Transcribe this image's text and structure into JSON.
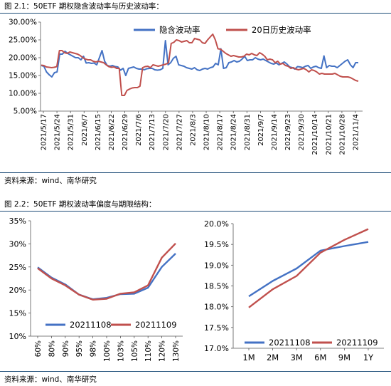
{
  "figure1": {
    "caption": "图 2.1：50ETF 期权隐含波动率与历史波动率：",
    "source": "资料来源：wind、南华研究"
  },
  "figure2": {
    "caption": "图 2.2：50ETF 期权波动率偏度与期限结构：",
    "source": "资料来源：wind、南华研究"
  },
  "colors": {
    "blue": "#4472c4",
    "red": "#c0504d"
  },
  "chart_data": [
    {
      "type": "line",
      "title": "",
      "xlabel": "",
      "ylabel": "",
      "ylim": [
        5,
        30
      ],
      "y_ticks": [
        "5.00%",
        "10.00%",
        "15.00%",
        "20.00%",
        "25.00%",
        "30.00%"
      ],
      "x_tick_labels": [
        "2021/5/17",
        "2021/5/24",
        "2021/5/31",
        "2021/6/7",
        "2021/6/15",
        "2021/6/22",
        "2021/6/29",
        "2021/7/6",
        "2021/7/13",
        "2021/7/20",
        "2021/7/27",
        "2021/8/3",
        "2021/8/10",
        "2021/8/17",
        "2021/8/24",
        "2021/8/31",
        "2021/9/7",
        "2021/9/14",
        "2021/9/23",
        "2021/9/30",
        "2021/10/14",
        "2021/10/21",
        "2021/10/28",
        "2021/11/4"
      ],
      "legend_position": "top",
      "grid": false,
      "series": [
        {
          "name": "隐含波动率",
          "color": "#4472c4",
          "values": [
            17.8,
            17.6,
            16.0,
            15.2,
            14.6,
            15.8,
            16.0,
            21.0,
            21.0,
            21.8,
            21.2,
            20.8,
            20.4,
            20.0,
            20.0,
            19.4,
            20.4,
            18.5,
            18.6,
            18.4,
            18.5,
            18.0,
            20.0,
            22.0,
            19.0,
            17.8,
            17.6,
            17.8,
            17.5,
            17.4,
            16.5,
            17.0,
            15.0,
            17.0,
            17.2,
            17.4,
            17.0,
            16.8,
            16.8,
            16.6,
            16.9,
            17.0,
            17.0,
            16.6,
            16.5,
            16.6,
            17.0,
            24.8,
            18.0,
            18.6,
            19.8,
            20.4,
            18.0,
            17.8,
            17.6,
            17.2,
            17.0,
            16.8,
            17.2,
            16.6,
            16.4,
            16.8,
            17.0,
            16.8,
            17.2,
            17.4,
            18.4,
            18.0,
            22.5,
            17.0,
            17.2,
            18.6,
            18.8,
            19.2,
            18.8,
            19.0,
            19.6,
            20.4,
            19.2,
            19.4,
            19.4,
            20.0,
            19.6,
            19.4,
            19.6,
            19.2,
            18.8,
            18.4,
            18.2,
            18.5,
            18.0,
            18.4,
            18.8,
            18.2,
            17.4,
            17.2,
            16.8,
            17.5,
            17.4,
            17.2,
            17.6,
            17.8,
            17.0,
            17.4,
            17.6,
            17.2,
            17.0,
            20.5,
            17.2,
            17.8,
            17.6,
            17.6,
            17.2,
            17.8,
            18.4,
            19.0,
            19.4,
            18.0,
            17.2,
            18.6,
            18.6
          ]
        },
        {
          "name": "20日历史波动率",
          "color": "#c0504d",
          "values": [
            17.9,
            17.8,
            17.4,
            17.3,
            17.2,
            17.3,
            17.5,
            22.0,
            22.0,
            21.4,
            21.2,
            21.6,
            21.4,
            21.2,
            21.0,
            20.6,
            20.0,
            19.6,
            19.4,
            19.4,
            19.0,
            18.8,
            19.0,
            18.8,
            18.6,
            18.0,
            17.5,
            17.3,
            17.4,
            17.0,
            17.0,
            9.4,
            9.4,
            10.8,
            11.2,
            11.5,
            11.6,
            11.6,
            12.0,
            17.2,
            17.5,
            17.6,
            17.2,
            18.0,
            17.8,
            17.6,
            17.8,
            18.0,
            18.2,
            18.6,
            24.0,
            24.3,
            25.0,
            24.8,
            24.4,
            24.6,
            24.8,
            24.2,
            24.2,
            25.4,
            25.2,
            25.0,
            24.2,
            24.0,
            25.0,
            25.8,
            26.6,
            25.0,
            22.5,
            22.4,
            21.8,
            21.2,
            20.8,
            20.4,
            20.6,
            20.4,
            20.2,
            20.2,
            20.4,
            21.0,
            20.8,
            21.2,
            20.8,
            20.6,
            21.4,
            21.0,
            20.4,
            19.4,
            19.6,
            19.4,
            18.6,
            19.0,
            18.2,
            18.4,
            17.8,
            17.6,
            17.0,
            17.2,
            16.8,
            16.6,
            16.8,
            17.0,
            16.6,
            16.0,
            16.6,
            16.4,
            16.0,
            15.4,
            15.6,
            15.4,
            15.4,
            15.4,
            15.4,
            15.6,
            15.2,
            14.8,
            14.6,
            14.6,
            14.6,
            14.4,
            14.0,
            13.6,
            13.4
          ]
        }
      ]
    },
    {
      "type": "line",
      "title": "",
      "xlabel": "",
      "ylabel": "",
      "ylim": [
        10,
        35
      ],
      "y_ticks": [
        "10%",
        "15%",
        "20%",
        "25%",
        "30%",
        "35%"
      ],
      "categories": [
        "60%",
        "80%",
        "90%",
        "95%",
        "98%",
        "100%",
        "103%",
        "105%",
        "110%",
        "120%",
        "130%"
      ],
      "legend_position": "bottom",
      "grid": false,
      "series": [
        {
          "name": "20211108",
          "color": "#4472c4",
          "values": [
            24.9,
            22.7,
            21.2,
            19.0,
            18.0,
            18.3,
            19.1,
            19.2,
            20.5,
            25.0,
            27.9
          ]
        },
        {
          "name": "20211109",
          "color": "#c0504d",
          "values": [
            24.7,
            22.5,
            21.0,
            19.0,
            17.9,
            18.1,
            19.2,
            19.5,
            21.0,
            27.0,
            30.1
          ]
        }
      ]
    },
    {
      "type": "line",
      "title": "",
      "xlabel": "",
      "ylabel": "",
      "ylim": [
        17,
        20
      ],
      "y_ticks": [
        "17.0%",
        "17.5%",
        "18.0%",
        "18.5%",
        "19.0%",
        "19.5%",
        "20.0%"
      ],
      "categories": [
        "1M",
        "2M",
        "3M",
        "6M",
        "9M",
        "1Y"
      ],
      "legend_position": "bottom",
      "grid": false,
      "series": [
        {
          "name": "20211108",
          "color": "#4472c4",
          "values": [
            18.25,
            18.62,
            18.92,
            19.35,
            19.46,
            19.56
          ]
        },
        {
          "name": "20211109",
          "color": "#c0504d",
          "values": [
            17.98,
            18.42,
            18.74,
            19.3,
            19.61,
            19.87
          ]
        }
      ]
    }
  ]
}
